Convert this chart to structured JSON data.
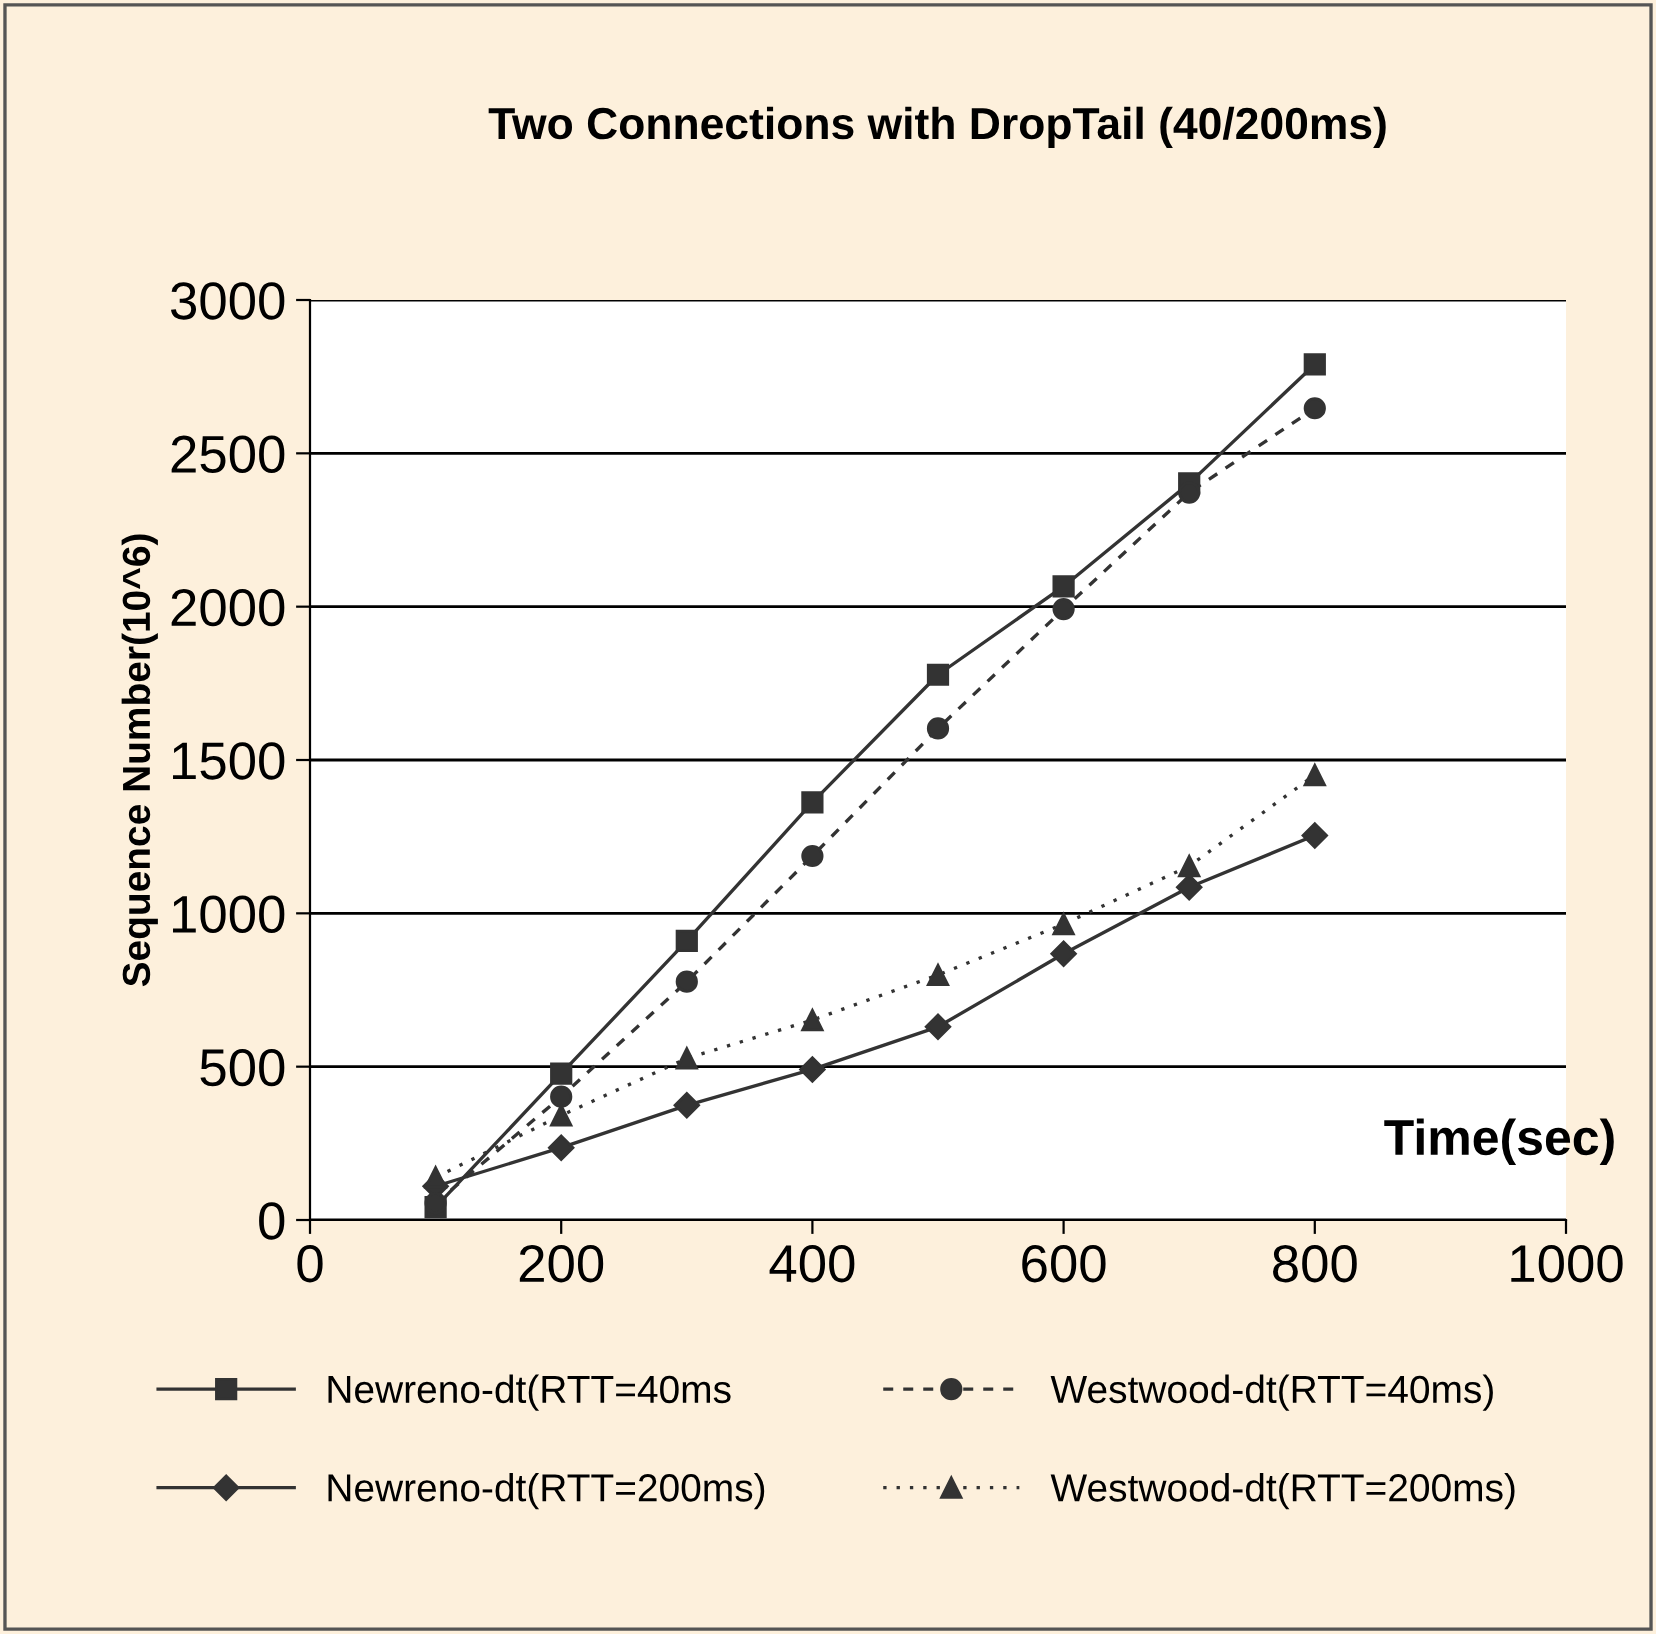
{
  "chart_data": {
    "type": "line",
    "title": "Two Connections with DropTail (40/200ms)",
    "xlabel": "Time(sec)",
    "ylabel": "Sequence Number(10^6)",
    "x": [
      100,
      200,
      300,
      400,
      500,
      600,
      700,
      800
    ],
    "series": [
      {
        "name": "Newreno-dt(RTT=40ms",
        "color": "#333333",
        "marker": "square",
        "line_style": "solid",
        "values": [
          42,
          477,
          910,
          1362,
          1778,
          2066,
          2402,
          2790
        ]
      },
      {
        "name": "Newreno-dt(RTT=200ms)",
        "color": "#333333",
        "marker": "diamond",
        "line_style": "solid",
        "values": [
          110,
          236,
          374,
          491,
          630,
          868,
          1085,
          1254
        ]
      },
      {
        "name": "Westwood-dt(RTT=40ms)",
        "color": "#333333",
        "marker": "circle",
        "line_style": "dashed",
        "values": [
          55,
          402,
          777,
          1187,
          1603,
          1992,
          2372,
          2647
        ]
      },
      {
        "name": "Westwood-dt(RTT=200ms)",
        "color": "#333333",
        "marker": "triangle",
        "line_style": "dotted",
        "values": [
          139,
          341,
          527,
          652,
          799,
          965,
          1154,
          1451
        ]
      }
    ],
    "xlim": [
      0,
      1000
    ],
    "xticks": [
      0,
      200,
      400,
      600,
      800,
      1000
    ],
    "ylim": [
      0,
      3000
    ],
    "yticks": [
      0,
      500,
      1000,
      1500,
      2000,
      2500,
      3000
    ],
    "grid": "y",
    "legend": "bottom"
  }
}
